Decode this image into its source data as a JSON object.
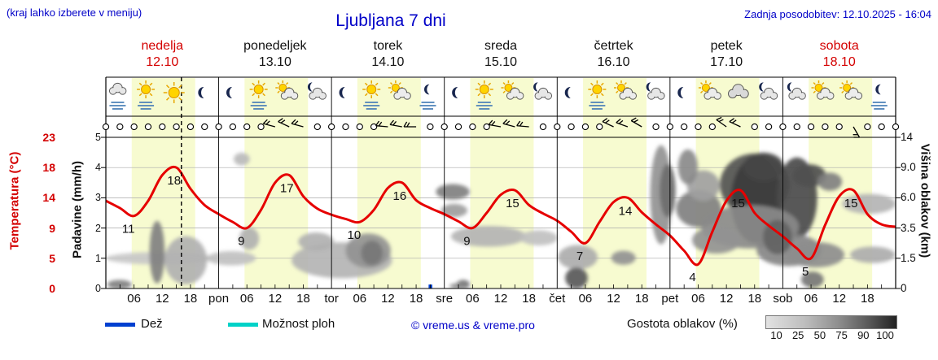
{
  "header": {
    "hint": "(kraj lahko izberete v meniju)",
    "title": "Ljubljana 7 dni",
    "updated": "Zadnja posodobitev: 12.10.2025 - 16:04"
  },
  "axes": {
    "temp_label": "Temperatura (°C)",
    "precip_label": "Padavine (mm/h)",
    "cloud_label": "Višina oblakov (km)",
    "temp_ticks": [
      "23",
      "18",
      "14",
      "9",
      "5",
      "0"
    ],
    "precip_ticks": [
      "5",
      "4",
      "3",
      "2",
      "1",
      "0"
    ],
    "cloud_ticks": [
      "14",
      "9.0",
      "6.0",
      "3.5",
      "1.5",
      "0"
    ]
  },
  "days": [
    {
      "name": "nedelja",
      "date": "12.10",
      "abbrev": "",
      "red": true,
      "icons": [
        "cloud-fog",
        "sun-fog",
        "sun",
        "moon"
      ]
    },
    {
      "name": "ponedeljek",
      "date": "13.10",
      "abbrev": "pon",
      "red": false,
      "icons": [
        "moon",
        "sun-fog",
        "sun-cloud",
        "moon-cloud"
      ]
    },
    {
      "name": "torek",
      "date": "14.10",
      "abbrev": "tor",
      "red": false,
      "icons": [
        "moon",
        "sun-fog",
        "sun-cloud",
        "moon-fog"
      ]
    },
    {
      "name": "sreda",
      "date": "15.10",
      "abbrev": "sre",
      "red": false,
      "icons": [
        "moon",
        "sun-fog",
        "sun-cloud",
        "moon-cloud"
      ]
    },
    {
      "name": "četrtek",
      "date": "16.10",
      "abbrev": "čet",
      "red": false,
      "icons": [
        "moon",
        "sun-fog",
        "sun-cloud",
        "moon-cloud"
      ]
    },
    {
      "name": "petek",
      "date": "17.10",
      "abbrev": "pet",
      "red": false,
      "icons": [
        "moon",
        "sun-cloud",
        "cloud",
        "moon-cloud"
      ]
    },
    {
      "name": "sobota",
      "date": "18.10",
      "abbrev": "sob",
      "red": true,
      "icons": [
        "moon-cloud",
        "sun-cloud",
        "sun-cloud",
        "moon-fog"
      ]
    }
  ],
  "x_hour_labels": [
    "06",
    "12",
    "18"
  ],
  "legend": {
    "rain": "Dež",
    "showers": "Možnost ploh",
    "copyright": "© vreme.us & vreme.pro",
    "cloud_density": "Gostota oblakov (%)",
    "density_ticks": [
      "10",
      "25",
      "50",
      "75",
      "90",
      "100"
    ]
  },
  "colors": {
    "temperature": "#e60000",
    "rain": "#0040d0",
    "showers": "#00d2c8",
    "daylight": "#f7fbd0",
    "header_blue": "#0000c8",
    "red": "#d40000"
  },
  "chart_data": {
    "type": "line",
    "title": "Ljubljana 7 dni",
    "x_unit": "hours from nedelja 00:00, step 3h",
    "temp_axis_ticks": [
      0,
      5,
      9,
      14,
      18,
      23
    ],
    "precip_axis_ticks": [
      0,
      1,
      2,
      3,
      4,
      5
    ],
    "cloud_height_ticks_km": [
      0,
      1.5,
      3.5,
      6.0,
      9.0,
      14
    ],
    "now_hour": 16.07,
    "daylight_hours": [
      5.5,
      19
    ],
    "temperature_c": [
      13.5,
      12.3,
      11,
      13.5,
      17,
      18,
      15.2,
      12.8,
      11.3,
      10,
      9,
      12,
      16,
      17,
      14.2,
      12.2,
      11.2,
      10.5,
      10,
      12,
      15.3,
      16,
      13.6,
      12.3,
      11.3,
      10.1,
      9,
      11.5,
      14.4,
      15,
      12.8,
      11.4,
      10.2,
      8.5,
      7,
      10,
      13.3,
      14,
      11.6,
      9.6,
      8,
      6,
      4,
      8.5,
      13.5,
      15,
      11.5,
      9.4,
      7.9,
      6.3,
      5,
      9.5,
      14.2,
      15,
      11.3,
      9.6,
      9.2
    ],
    "temperature_labels": [
      {
        "t": 4.8,
        "v": 11
      },
      {
        "t": 14.5,
        "v": 18
      },
      {
        "t": 28.8,
        "v": 9
      },
      {
        "t": 38.5,
        "v": 17
      },
      {
        "t": 52.8,
        "v": 10
      },
      {
        "t": 62.5,
        "v": 16
      },
      {
        "t": 76.8,
        "v": 9
      },
      {
        "t": 86.5,
        "v": 15
      },
      {
        "t": 100.8,
        "v": 7
      },
      {
        "t": 110.5,
        "v": 14
      },
      {
        "t": 124.8,
        "v": 4
      },
      {
        "t": 134.5,
        "v": 15
      },
      {
        "t": 148.8,
        "v": 5
      },
      {
        "t": 158.5,
        "v": 15
      }
    ],
    "precip_mm_h": [
      {
        "t": 69,
        "v": 0.13
      }
    ],
    "wind_symbol_count": 57,
    "wind_barbs": [
      [
        12,
        195
      ],
      [
        13,
        205
      ],
      [
        14,
        195
      ],
      [
        20,
        185
      ],
      [
        21,
        190
      ],
      [
        22,
        180
      ],
      [
        28,
        190
      ],
      [
        29,
        195
      ],
      [
        30,
        185
      ],
      [
        36,
        205
      ],
      [
        37,
        200
      ],
      [
        38,
        210
      ],
      [
        44,
        215
      ],
      [
        45,
        205
      ],
      [
        53,
        60
      ]
    ],
    "cloud_blobs_format": "[t_hour, height_km, half_width_h, half_height_km, density_0_1]",
    "cloud_blobs": [
      [
        11.4,
        1.5,
        11.4,
        0.35,
        0.18
      ],
      [
        10.9,
        1.9,
        1.6,
        1.85,
        0.55
      ],
      [
        17,
        1.4,
        4.5,
        1.35,
        0.3
      ],
      [
        28.9,
        10.4,
        1.7,
        1.05,
        0.25
      ],
      [
        30.5,
        2.8,
        2.1,
        0.75,
        0.3
      ],
      [
        26.7,
        1.5,
        5.2,
        0.4,
        0.22
      ],
      [
        50.2,
        1.4,
        10.7,
        1.0,
        0.28
      ],
      [
        55.8,
        2.0,
        4.8,
        1.05,
        0.45
      ],
      [
        56.6,
        1.85,
        2.3,
        0.75,
        0.6
      ],
      [
        44.7,
        2.6,
        3.8,
        0.6,
        0.3
      ],
      [
        73.8,
        6.6,
        3.6,
        0.75,
        0.55
      ],
      [
        74.1,
        4.95,
        2.8,
        0.55,
        0.4
      ],
      [
        81.4,
        2.95,
        8,
        0.7,
        0.28
      ],
      [
        92.1,
        2.85,
        4,
        0.5,
        0.22
      ],
      [
        76,
        0.2,
        1.4,
        0.25,
        0.65
      ],
      [
        100.4,
        1.57,
        4.2,
        0.7,
        0.32
      ],
      [
        100.1,
        0.52,
        2.4,
        0.52,
        0.75
      ],
      [
        110.1,
        1.53,
        2.6,
        0.4,
        0.45
      ],
      [
        118.1,
        6.3,
        2.3,
        4.6,
        0.45
      ],
      [
        119.5,
        6.7,
        1.7,
        2.5,
        0.65
      ],
      [
        126.1,
        5.1,
        4.8,
        1.6,
        0.55
      ],
      [
        127.1,
        7.2,
        3.5,
        1.5,
        0.38
      ],
      [
        138,
        7.3,
        7.4,
        3.2,
        0.78
      ],
      [
        138.4,
        5.8,
        5.4,
        3.8,
        0.9
      ],
      [
        147,
        6.0,
        4.3,
        3.6,
        0.82
      ],
      [
        137,
        3.6,
        10.4,
        1.6,
        0.5
      ],
      [
        145.3,
        2.05,
        6.9,
        1.0,
        0.52
      ],
      [
        149.6,
        8.2,
        3.6,
        1.2,
        0.8
      ],
      [
        154,
        7.6,
        2.6,
        0.9,
        0.55
      ],
      [
        151,
        1.73,
        6.1,
        0.75,
        0.48
      ],
      [
        150.3,
        0.44,
        2.4,
        0.4,
        0.6
      ],
      [
        162.3,
        5.5,
        5.7,
        0.85,
        0.28
      ],
      [
        163.1,
        1.73,
        4.8,
        0.5,
        0.32
      ],
      [
        2.9,
        0.2,
        2.6,
        0.25,
        0.55
      ],
      [
        75.2,
        0.12,
        2.1,
        0.17,
        0.5
      ],
      [
        129.9,
        2.7,
        5.2,
        0.9,
        0.45
      ],
      [
        123.8,
        9.1,
        2.1,
        2.2,
        0.5
      ],
      [
        139.9,
        9.1,
        4.3,
        1.8,
        0.85
      ],
      [
        142.9,
        2.9,
        3.1,
        1.2,
        0.7
      ]
    ]
  }
}
